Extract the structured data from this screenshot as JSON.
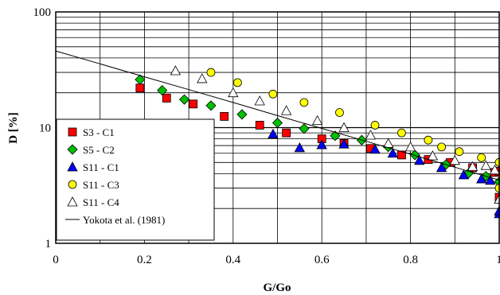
{
  "chart_data": {
    "type": "scatter",
    "xlabel": "G/Go",
    "ylabel": "D [%]",
    "xlim": [
      0,
      1
    ],
    "ylim": [
      1,
      100
    ],
    "y_scale": "log",
    "grid": true,
    "legend_placement": "bottom-left",
    "x_ticks": [
      "0",
      "0.2",
      "0.4",
      "0.6",
      "0.8",
      "1"
    ],
    "y_ticks": [
      "1",
      "10",
      "100"
    ],
    "series": [
      {
        "name": "S3 - C1",
        "marker": "square",
        "color": "#ff0000",
        "points": [
          [
            0.19,
            22
          ],
          [
            0.25,
            18
          ],
          [
            0.31,
            16
          ],
          [
            0.38,
            12.5
          ],
          [
            0.46,
            10.5
          ],
          [
            0.52,
            9
          ],
          [
            0.6,
            8
          ],
          [
            0.65,
            7.3
          ],
          [
            0.71,
            6.6
          ],
          [
            0.78,
            5.8
          ],
          [
            0.84,
            5.3
          ],
          [
            0.89,
            5
          ],
          [
            0.94,
            4.5
          ],
          [
            0.99,
            4.1
          ],
          [
            1.0,
            4.2
          ],
          [
            1.0,
            2.5
          ]
        ]
      },
      {
        "name": "S5 - C2",
        "marker": "diamond",
        "color": "#00c000",
        "points": [
          [
            0.19,
            26
          ],
          [
            0.24,
            21
          ],
          [
            0.29,
            17.5
          ],
          [
            0.35,
            15.5
          ],
          [
            0.42,
            13
          ],
          [
            0.5,
            11
          ],
          [
            0.56,
            9.8
          ],
          [
            0.63,
            8.5
          ],
          [
            0.69,
            7.8
          ],
          [
            0.75,
            6.8
          ],
          [
            0.81,
            5.8
          ],
          [
            0.88,
            4.8
          ],
          [
            0.93,
            4
          ],
          [
            0.97,
            3.8
          ],
          [
            1.0,
            3.4
          ]
        ]
      },
      {
        "name": "S11 - C1",
        "marker": "triangle",
        "color": "#0000ff",
        "points": [
          [
            0.49,
            8.8
          ],
          [
            0.55,
            6.7
          ],
          [
            0.6,
            7.1
          ],
          [
            0.65,
            7.2
          ],
          [
            0.72,
            6.5
          ],
          [
            0.76,
            6
          ],
          [
            0.82,
            5.2
          ],
          [
            0.87,
            4.5
          ],
          [
            0.92,
            3.9
          ],
          [
            0.96,
            3.6
          ],
          [
            0.98,
            3.5
          ],
          [
            1.0,
            1.8
          ],
          [
            1.0,
            1.9
          ]
        ]
      },
      {
        "name": "S11 - C3",
        "marker": "circle",
        "color": "#ffff00",
        "points": [
          [
            0.35,
            30
          ],
          [
            0.41,
            24.5
          ],
          [
            0.49,
            19.5
          ],
          [
            0.56,
            16.5
          ],
          [
            0.64,
            13.5
          ],
          [
            0.72,
            10.5
          ],
          [
            0.78,
            9
          ],
          [
            0.84,
            7.8
          ],
          [
            0.87,
            6.8
          ],
          [
            0.91,
            6.2
          ],
          [
            0.96,
            5.5
          ],
          [
            1.0,
            5
          ],
          [
            1.0,
            3
          ]
        ]
      },
      {
        "name": "S11 - C4",
        "marker": "triangle-open",
        "color": "#ffffff",
        "points": [
          [
            0.27,
            31
          ],
          [
            0.33,
            26.5
          ],
          [
            0.4,
            20
          ],
          [
            0.46,
            17
          ],
          [
            0.52,
            14
          ],
          [
            0.59,
            11.5
          ],
          [
            0.65,
            10
          ],
          [
            0.71,
            8.6
          ],
          [
            0.75,
            7.3
          ],
          [
            0.8,
            6.8
          ],
          [
            0.85,
            5.7
          ],
          [
            0.9,
            5.2
          ],
          [
            0.94,
            4.6
          ],
          [
            0.97,
            4.7
          ],
          [
            0.99,
            4.3
          ],
          [
            1.0,
            2.4
          ]
        ]
      },
      {
        "name": "Yokota et al. (1981)",
        "marker": "line",
        "color": "#000000",
        "points": [
          [
            0,
            46
          ],
          [
            0.1,
            35.6
          ],
          [
            0.2,
            27.5
          ],
          [
            0.3,
            21.3
          ],
          [
            0.4,
            16.5
          ],
          [
            0.5,
            12.7
          ],
          [
            0.6,
            9.85
          ],
          [
            0.7,
            7.62
          ],
          [
            0.8,
            5.89
          ],
          [
            0.9,
            4.55
          ],
          [
            1.0,
            3.52
          ]
        ]
      }
    ]
  }
}
